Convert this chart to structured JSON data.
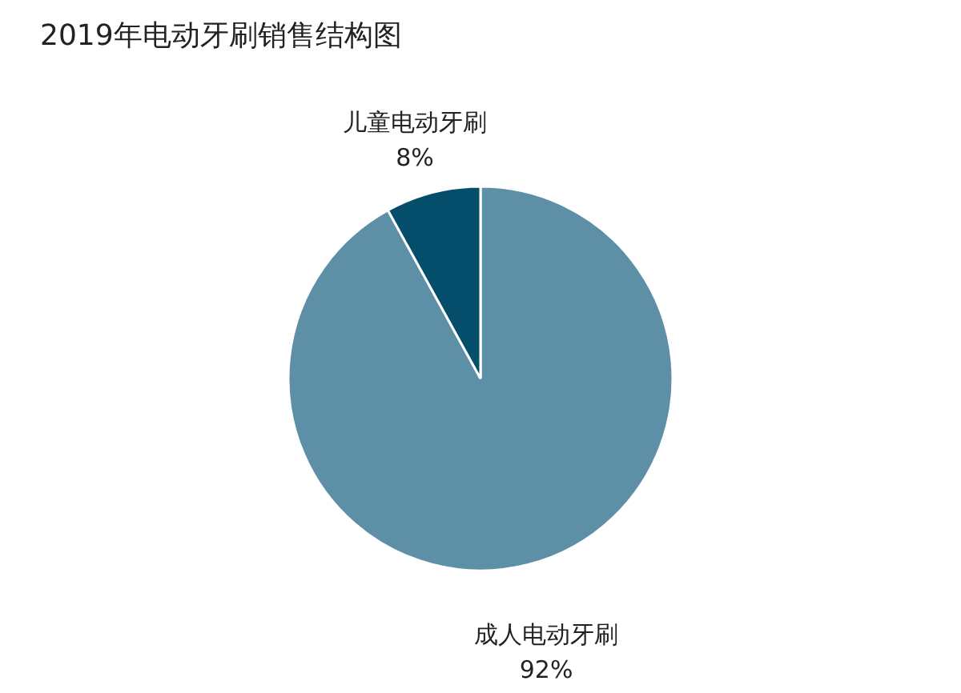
{
  "chart_data": {
    "type": "pie",
    "title": "2019年电动牙刷销售结构图",
    "categories": [
      "成人电动牙刷",
      "儿童电动牙刷"
    ],
    "values": [
      92,
      8
    ],
    "value_labels": [
      "92%",
      "8%"
    ],
    "colors": [
      "#5d8fa6",
      "#054e6b"
    ]
  }
}
